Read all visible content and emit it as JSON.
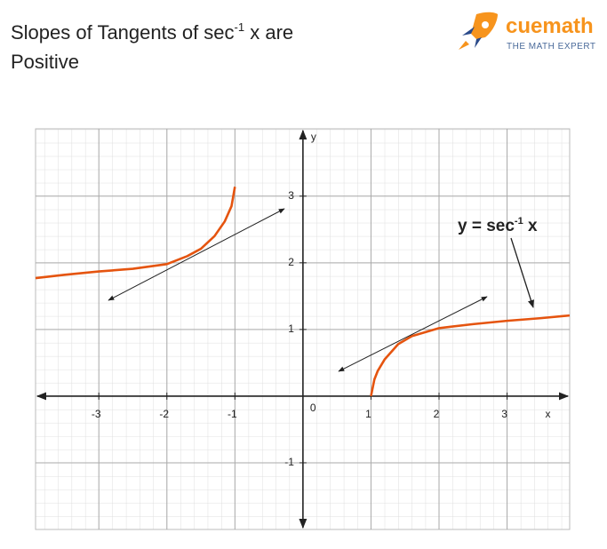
{
  "chart_data": {
    "type": "line",
    "title": {
      "text": "Slopes of Tangents of sec",
      "sup": "-1",
      "rest": " x are",
      "line2": "Positive"
    },
    "logo": {
      "name": "cuemath",
      "tagline": "THE MATH EXPERT"
    },
    "annotation": {
      "text": "y = sec",
      "sup": "-1",
      "rest": " x"
    },
    "x_label": "x",
    "y_label": "y",
    "origin_label": "0",
    "xlim": [
      -3.93,
      3.92
    ],
    "ylim": [
      -2,
      4.01
    ],
    "xticks": [
      -3,
      -2,
      -1,
      1,
      2,
      3
    ],
    "yticks": [
      -1,
      1,
      2,
      3
    ],
    "grid": true,
    "series": [
      {
        "color": "#e5540f",
        "x": [
          -3.93,
          -3.5,
          -3,
          -2.5,
          -2,
          -1.7,
          -1.5,
          -1.3,
          -1.15,
          -1.05,
          -1
        ],
        "values": [
          1.77,
          1.82,
          1.87,
          1.91,
          1.98,
          2.1,
          2.21,
          2.4,
          2.62,
          2.85,
          3.14
        ]
      },
      {
        "color": "#e5540f",
        "x": [
          1,
          1.05,
          1.1,
          1.2,
          1.4,
          1.6,
          2,
          2.5,
          3,
          3.5,
          3.92
        ],
        "values": [
          0,
          0.25,
          0.38,
          0.55,
          0.78,
          0.9,
          1.02,
          1.08,
          1.13,
          1.17,
          1.21
        ]
      }
    ]
  }
}
